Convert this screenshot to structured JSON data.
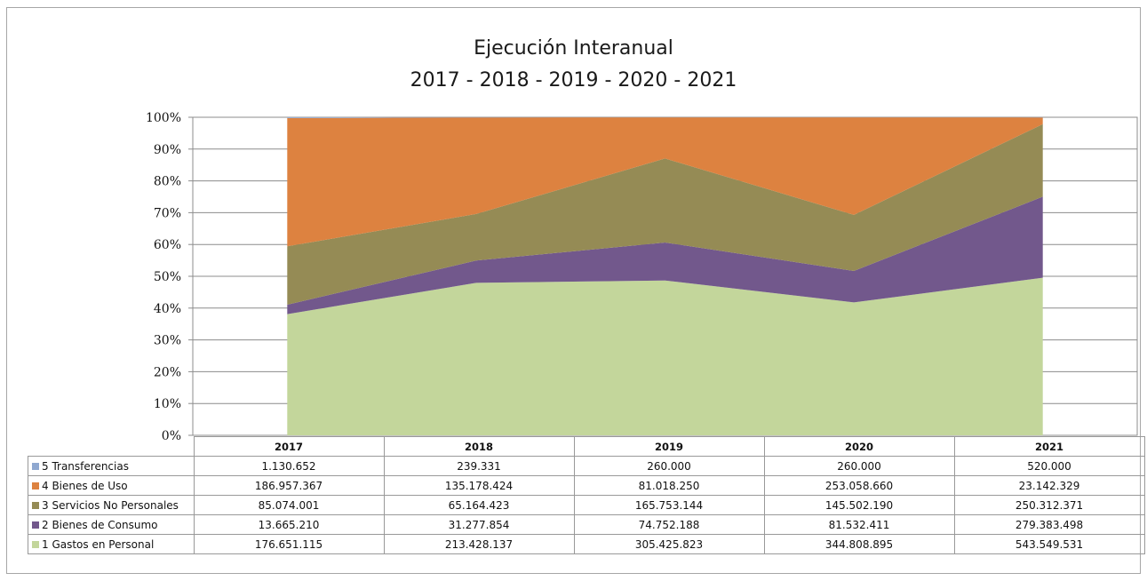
{
  "chart_data": {
    "type": "area",
    "stacking": "percent",
    "title": "Ejecución Interanual",
    "subtitle": "2017 - 2018 - 2019 - 2020 - 2021",
    "categories": [
      "2017",
      "2018",
      "2019",
      "2020",
      "2021"
    ],
    "y_tick_labels": [
      "0%",
      "10%",
      "20%",
      "30%",
      "40%",
      "50%",
      "60%",
      "70%",
      "80%",
      "90%",
      "100%"
    ],
    "ylim": [
      0,
      100
    ],
    "grid": true,
    "legend": "data-table-below",
    "series": [
      {
        "name": "1 Gastos en Personal",
        "color": "#c3d69b",
        "values": [
          176651115,
          213428137,
          305425823,
          344808895,
          543549531
        ],
        "labels": [
          "176.651.115",
          "213.428.137",
          "305.425.823",
          "344.808.895",
          "543.549.531"
        ]
      },
      {
        "name": "2 Bienes de Consumo",
        "color": "#72588c",
        "values": [
          13665210,
          31277854,
          74752188,
          81532411,
          279383498
        ],
        "labels": [
          "13.665.210",
          "31.277.854",
          "74.752.188",
          "81.532.411",
          "279.383.498"
        ]
      },
      {
        "name": "3 Servicios No Personales",
        "color": "#958b55",
        "values": [
          85074001,
          65164423,
          165753144,
          145502190,
          250312371
        ],
        "labels": [
          "85.074.001",
          "65.164.423",
          "165.753.144",
          "145.502.190",
          "250.312.371"
        ]
      },
      {
        "name": "4 Bienes de Uso",
        "color": "#dd8240",
        "values": [
          186957367,
          135178424,
          81018250,
          253058660,
          23142329
        ],
        "labels": [
          "186.957.367",
          "135.178.424",
          "81.018.250",
          "253.058.660",
          "23.142.329"
        ]
      },
      {
        "name": "5 Transferencias",
        "color": "#8fa8d0",
        "values": [
          1130652,
          239331,
          260000,
          260000,
          520000
        ],
        "labels": [
          "1.130.652",
          "239.331",
          "260.000",
          "260.000",
          "520.000"
        ]
      }
    ]
  }
}
